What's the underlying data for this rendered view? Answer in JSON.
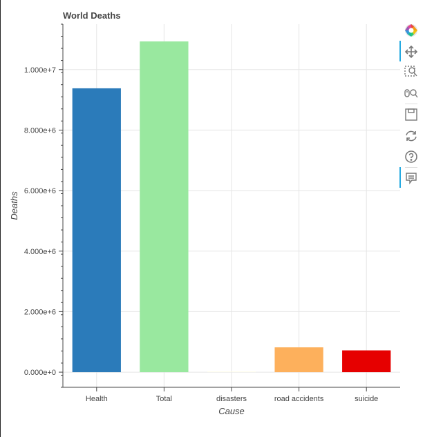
{
  "chart_data": {
    "type": "bar",
    "title": "World Deaths",
    "xlabel": "Cause",
    "ylabel": "Deaths",
    "categories": [
      "Health",
      "Total",
      "disasters",
      "road accidents",
      "suicide"
    ],
    "values": [
      9380000,
      10930000,
      18000,
      820000,
      720000
    ],
    "colors": [
      "#2b7bba",
      "#99e89f",
      "#fffde4",
      "#fdb05c",
      "#e60000"
    ],
    "ylim": [
      -500000,
      11500000
    ],
    "yticks": [
      0,
      2000000,
      4000000,
      6000000,
      8000000,
      10000000
    ],
    "ytick_labels": [
      "0.000e+0",
      "2.000e+6",
      "4.000e+6",
      "6.000e+6",
      "8.000e+6",
      "1.000e+7"
    ],
    "grid": true,
    "legend": "none"
  },
  "toolbar": {
    "tools": [
      "bokeh-logo-icon",
      "pan-icon",
      "box-zoom-icon",
      "wheel-zoom-icon",
      "save-icon",
      "reset-icon",
      "help-icon",
      "hover-icon"
    ]
  }
}
